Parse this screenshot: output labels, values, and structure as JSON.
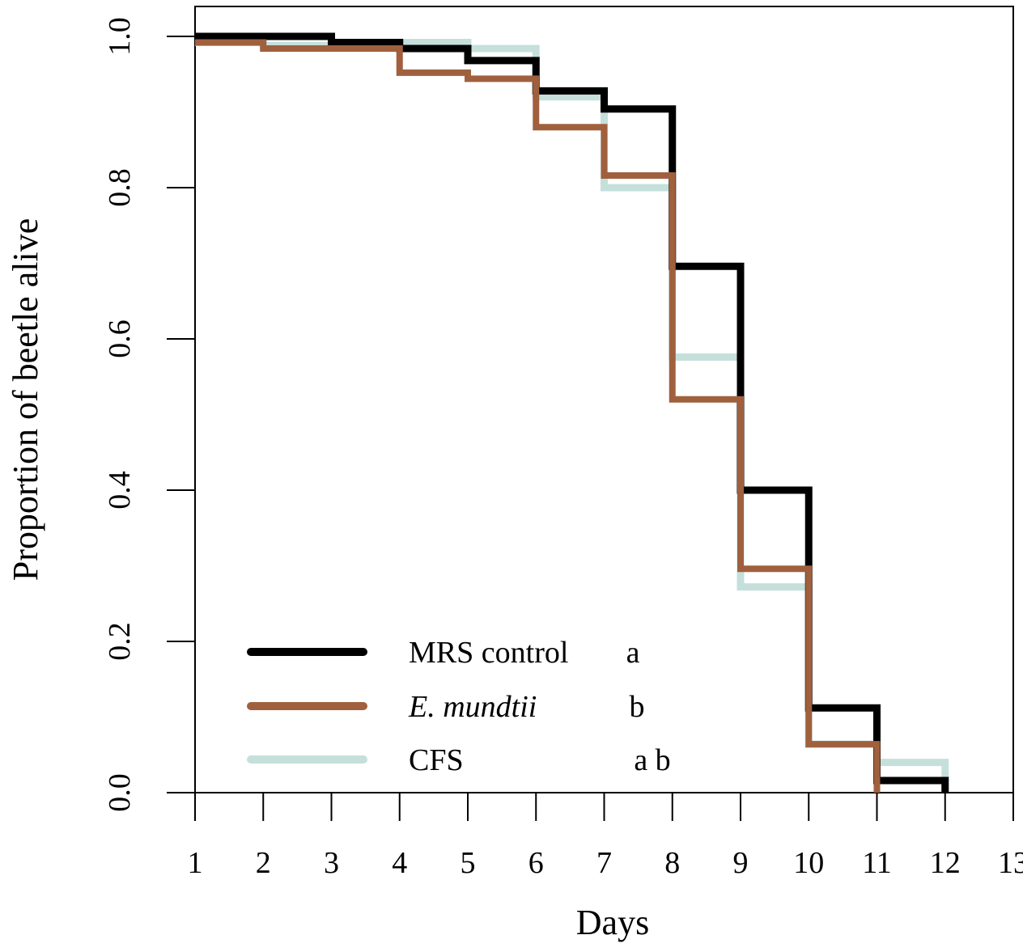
{
  "chart_data": {
    "type": "line",
    "style": "step",
    "xlabel": "Days",
    "ylabel": "Proportion of beetle alive",
    "xlim": [
      1,
      13
    ],
    "ylim": [
      0.0,
      1.0
    ],
    "x_ticks": [
      "1",
      "2",
      "3",
      "4",
      "5",
      "6",
      "7",
      "8",
      "9",
      "10",
      "11",
      "12",
      "13"
    ],
    "y_ticks": [
      "0.0",
      "0.2",
      "0.4",
      "0.6",
      "0.8",
      "1.0"
    ],
    "grid": false,
    "legend_position": "bottom-left",
    "series": [
      {
        "name": "MRS control",
        "italic": false,
        "group_letter": "a",
        "color": "#000000",
        "x": [
          1,
          3,
          4,
          5,
          6,
          7,
          8,
          9,
          10,
          11,
          12
        ],
        "y": [
          1.0,
          0.992,
          0.984,
          0.968,
          0.928,
          0.904,
          0.696,
          0.4,
          0.112,
          0.016,
          0.0
        ]
      },
      {
        "name": "E. mundtii",
        "italic": true,
        "group_letter": "b",
        "color": "#a0603e",
        "x": [
          1,
          2,
          4,
          5,
          6,
          7,
          8,
          9,
          10,
          11
        ],
        "y": [
          0.992,
          0.984,
          0.952,
          0.944,
          0.88,
          0.816,
          0.52,
          0.296,
          0.064,
          0.0
        ]
      },
      {
        "name": "CFS",
        "italic": false,
        "group_letter": "a b",
        "color": "#c5e0db",
        "x": [
          1,
          2,
          3,
          5,
          6,
          7,
          8,
          9,
          10,
          11,
          12
        ],
        "y": [
          0.992,
          0.988,
          0.992,
          0.984,
          0.92,
          0.8,
          0.576,
          0.272,
          0.064,
          0.04,
          0.0
        ]
      }
    ]
  }
}
